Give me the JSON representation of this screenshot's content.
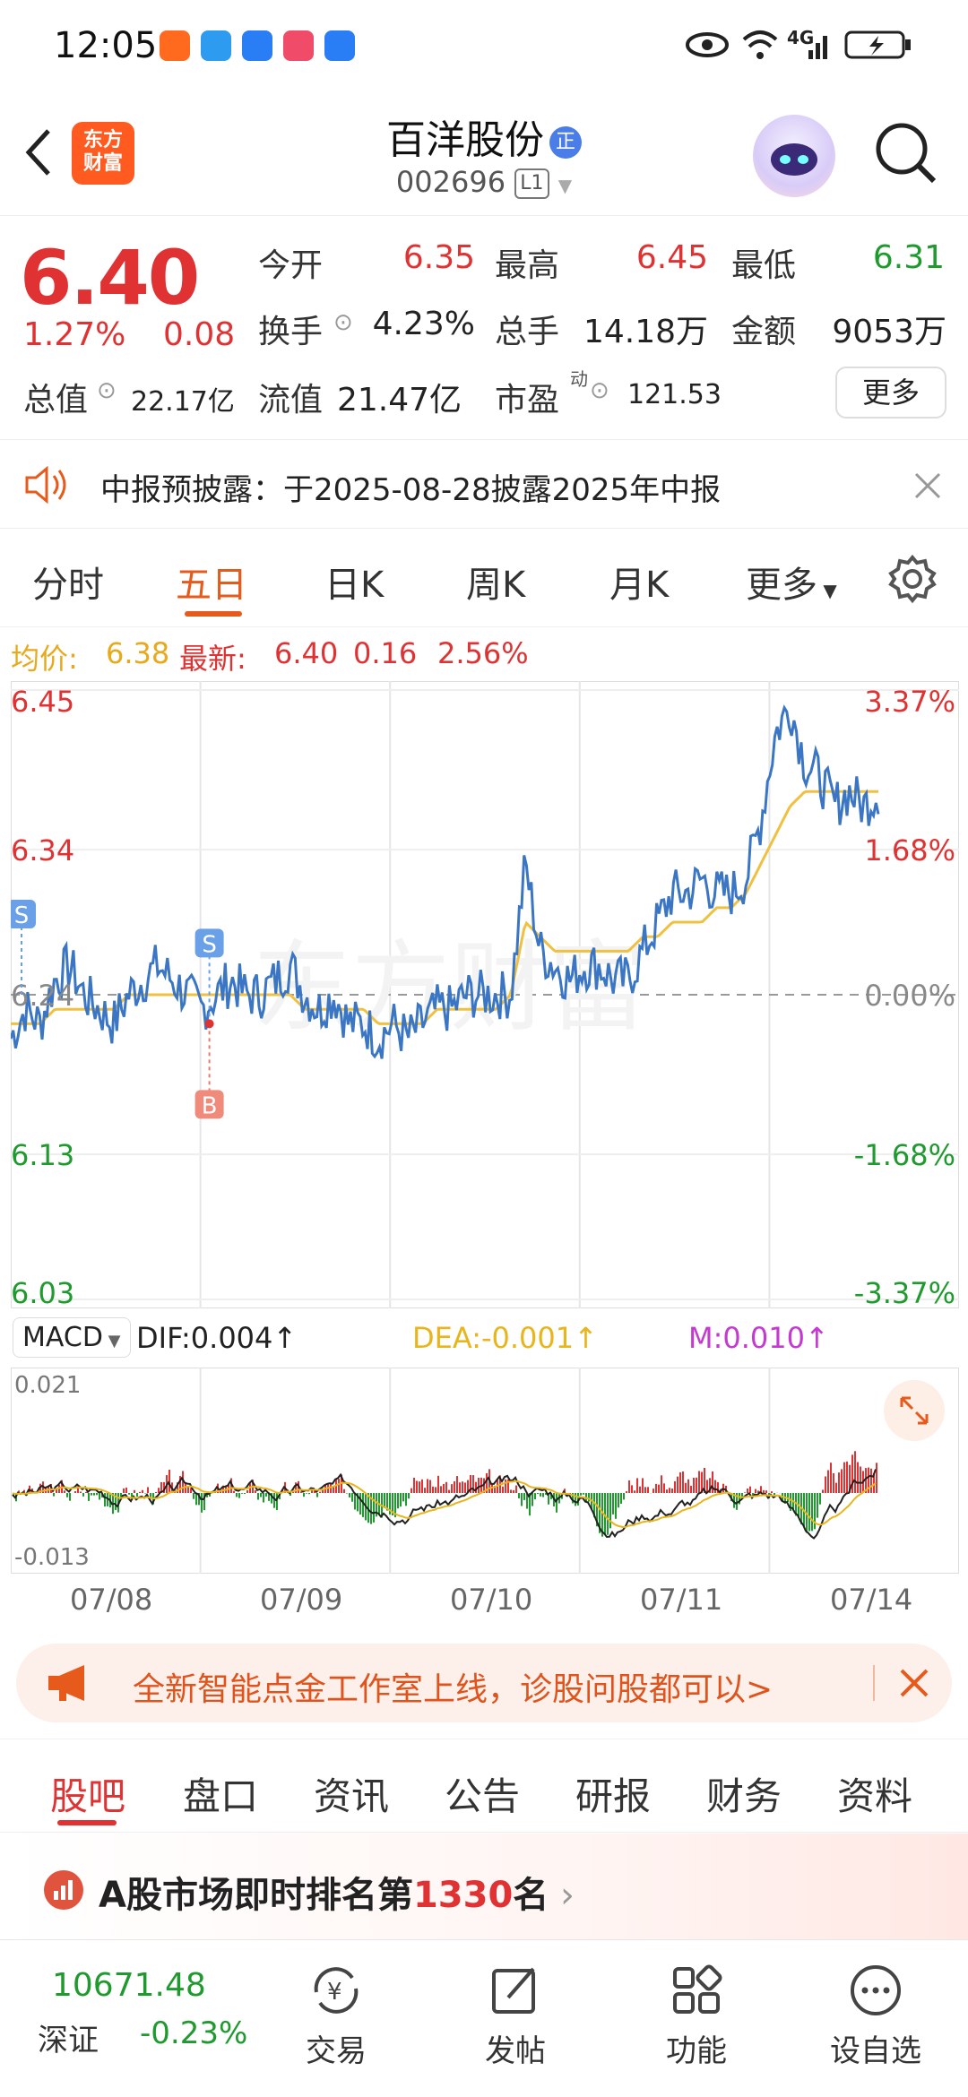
{
  "status_bar": {
    "time": "12:05",
    "network": "4G"
  },
  "header": {
    "logo_text_line1": "东方",
    "logo_text_line2": "财富",
    "stock_name": "百洋股份",
    "name_badge": "正",
    "stock_code": "002696",
    "code_badge": "L1"
  },
  "quote": {
    "price": "6.40",
    "change_pct": "1.27%",
    "change_abs": "0.08",
    "open_label": "今开",
    "open": "6.35",
    "high_label": "最高",
    "high": "6.45",
    "low_label": "最低",
    "low": "6.31",
    "turnover_label": "换手",
    "turnover": "4.23%",
    "volume_label": "总手",
    "volume": "14.18万",
    "amount_label": "金额",
    "amount": "9053万",
    "mktcap_label": "总值",
    "mktcap": "22.17亿",
    "float_label": "流值",
    "float": "21.47亿",
    "pe_label": "市盈",
    "pe_sup": "动",
    "pe": "121.53",
    "more_button": "更多"
  },
  "notice": {
    "text": "中报预披露：于2025-08-28披露2025年中报"
  },
  "chart_tabs": [
    {
      "label": "分时"
    },
    {
      "label": "五日"
    },
    {
      "label": "日K"
    },
    {
      "label": "周K"
    },
    {
      "label": "月K"
    },
    {
      "label": "更多"
    }
  ],
  "summary": {
    "avg_label": "均价:",
    "avg": "6.38",
    "latest_label": "最新:",
    "latest": "6.40",
    "diff": "0.16",
    "diff_pct": "2.56%"
  },
  "chart_data": {
    "type": "line",
    "y_left_ticks": [
      "6.45",
      "6.34",
      "6.24",
      "6.13",
      "6.03"
    ],
    "y_right_ticks": [
      "3.37%",
      "1.68%",
      "0.00%",
      "-1.68%",
      "-3.37%"
    ],
    "ylim": [
      6.03,
      6.45
    ],
    "base": 6.24,
    "days": [
      "07/08",
      "07/09",
      "07/10",
      "07/11",
      "07/14"
    ],
    "series": [
      {
        "values": [
          6.21,
          6.23,
          6.22,
          6.25,
          6.26,
          6.24,
          6.23,
          6.22,
          6.24,
          6.25,
          6.26,
          6.25,
          6.24,
          6.23,
          6.24,
          6.25,
          6.24,
          6.24,
          6.25,
          6.26,
          6.24,
          6.23,
          6.24,
          6.22,
          6.22,
          6.21,
          6.22,
          6.21,
          6.22,
          6.23,
          6.23,
          6.24,
          6.24,
          6.24,
          6.24,
          6.33,
          6.27,
          6.26,
          6.25,
          6.26,
          6.26,
          6.25,
          6.25,
          6.27,
          6.29,
          6.31,
          6.31,
          6.32,
          6.31,
          6.31,
          6.32,
          6.36,
          6.42,
          6.44,
          6.4,
          6.39,
          6.37,
          6.38,
          6.37,
          6.38
        ]
      },
      {
        "values": [
          6.22,
          6.22,
          6.22,
          6.23,
          6.23,
          6.23,
          6.23,
          6.23,
          6.24,
          6.24,
          6.24,
          6.24,
          6.24,
          6.24,
          6.24,
          6.24,
          6.24,
          6.24,
          6.24,
          6.24,
          6.23,
          6.23,
          6.23,
          6.23,
          6.23,
          6.22,
          6.22,
          6.22,
          6.22,
          6.23,
          6.23,
          6.23,
          6.23,
          6.23,
          6.24,
          6.29,
          6.28,
          6.27,
          6.27,
          6.27,
          6.27,
          6.27,
          6.27,
          6.28,
          6.28,
          6.29,
          6.29,
          6.29,
          6.3,
          6.3,
          6.31,
          6.33,
          6.35,
          6.37,
          6.38,
          6.38,
          6.38,
          6.38,
          6.38,
          6.38
        ]
      }
    ],
    "markers": [
      {
        "label": "S",
        "day_index": 0,
        "price": 6.24
      },
      {
        "label": "S",
        "day_index": 1,
        "price": 6.22
      },
      {
        "label": "B",
        "day_index": 1,
        "price": 6.22
      }
    ]
  },
  "macd": {
    "selector": "MACD",
    "dif": "DIF:0.004↑",
    "dea": "DEA:-0.001↑",
    "m": "M:0.010↑",
    "top_value": "0.021",
    "bottom_value": "-0.013"
  },
  "banner": {
    "text": "全新智能点金工作室上线，诊股问股都可以>"
  },
  "news_tabs": [
    {
      "label": "股吧"
    },
    {
      "label": "盘口"
    },
    {
      "label": "资讯"
    },
    {
      "label": "公告"
    },
    {
      "label": "研报"
    },
    {
      "label": "财务"
    },
    {
      "label": "资料"
    }
  ],
  "rank": {
    "prefix": "A股市场即时排名第",
    "number": "1330",
    "suffix": "名"
  },
  "bottom_nav": {
    "index_value": "10671.48",
    "index_name": "深证",
    "index_change": "-0.23%",
    "trade": "交易",
    "post": "发帖",
    "functions": "功能",
    "watchlist": "设自选"
  },
  "colors": {
    "up": "#e03232",
    "down": "#1f9a2e",
    "accent": "#e65a1c",
    "line": "#3a76c4",
    "avg": "#f0c040"
  }
}
